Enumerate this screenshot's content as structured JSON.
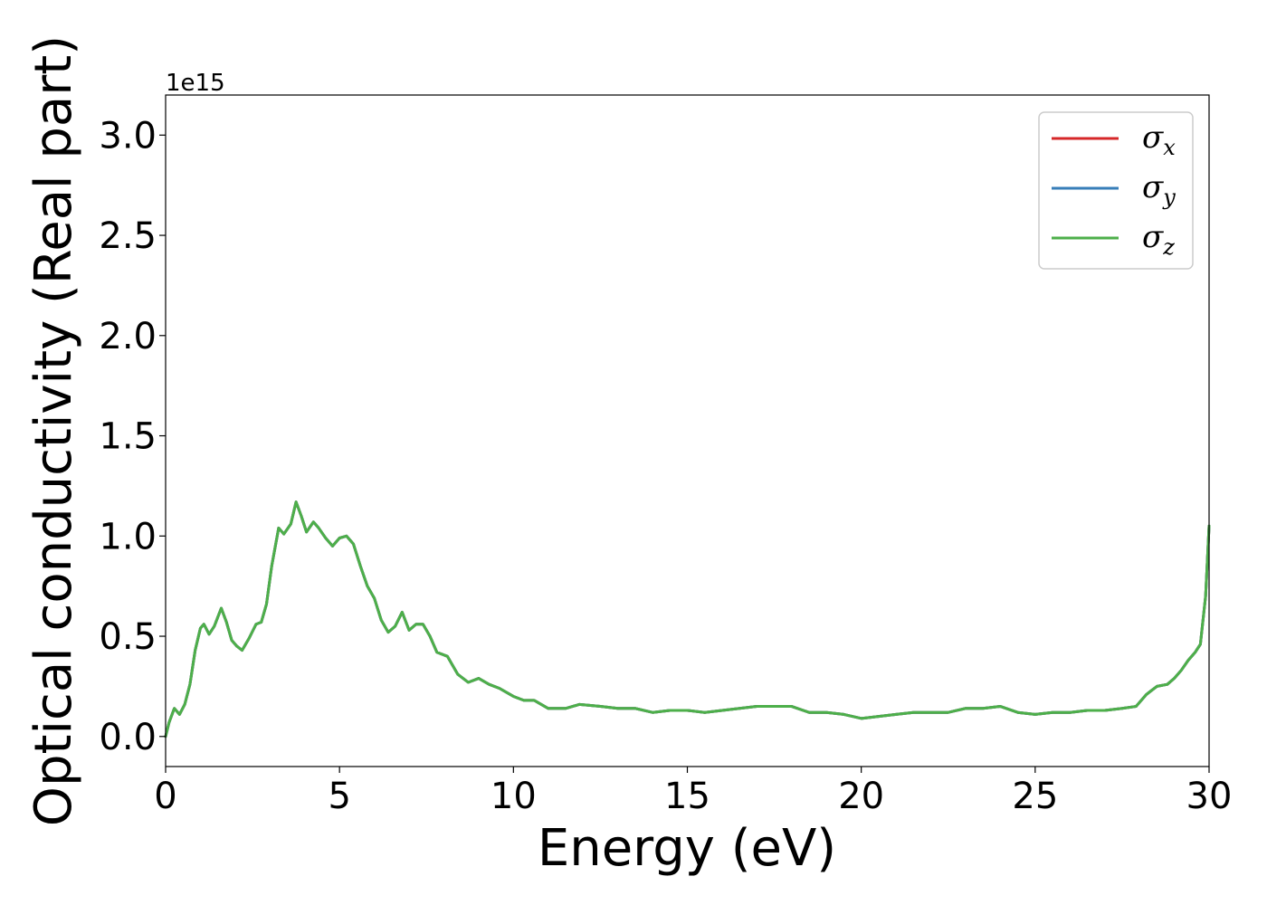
{
  "chart_data": {
    "type": "line",
    "title": "",
    "xlabel": "Energy (eV)",
    "ylabel": "Optical conductivity (Real part)",
    "y_offset_label": "1e15",
    "xlim": [
      0,
      30
    ],
    "ylim": [
      -0.15,
      3.2
    ],
    "x_ticks": [
      0,
      5,
      10,
      15,
      20,
      25,
      30
    ],
    "x_tick_labels": [
      "0",
      "5",
      "10",
      "15",
      "20",
      "25",
      "30"
    ],
    "y_ticks": [
      0.0,
      0.5,
      1.0,
      1.5,
      2.0,
      2.5,
      3.0
    ],
    "y_tick_labels": [
      "0.0",
      "0.5",
      "1.0",
      "1.5",
      "2.0",
      "2.5",
      "3.0"
    ],
    "grid": false,
    "legend_position": "top-right",
    "x": [
      0,
      0.1,
      0.25,
      0.4,
      0.55,
      0.7,
      0.85,
      1.0,
      1.1,
      1.25,
      1.4,
      1.6,
      1.75,
      1.9,
      2.05,
      2.2,
      2.4,
      2.6,
      2.75,
      2.9,
      3.05,
      3.25,
      3.4,
      3.6,
      3.75,
      3.9,
      4.05,
      4.25,
      4.4,
      4.6,
      4.8,
      5.0,
      5.2,
      5.4,
      5.6,
      5.8,
      6.0,
      6.2,
      6.4,
      6.6,
      6.8,
      7.0,
      7.2,
      7.4,
      7.6,
      7.8,
      8.1,
      8.4,
      8.7,
      9.0,
      9.3,
      9.6,
      10.0,
      10.3,
      10.6,
      11.0,
      11.5,
      11.9,
      12.5,
      13.0,
      13.5,
      14.0,
      14.5,
      15.0,
      15.5,
      16.0,
      16.5,
      17.0,
      17.5,
      18.0,
      18.5,
      19.0,
      19.5,
      20.0,
      20.5,
      21.0,
      21.5,
      22.0,
      22.5,
      23.0,
      23.5,
      24.0,
      24.5,
      25.0,
      25.5,
      26.0,
      26.5,
      27.0,
      27.5,
      27.9,
      28.2,
      28.5,
      28.8,
      29.0,
      29.2,
      29.4,
      29.6,
      29.75,
      29.9,
      30.0
    ],
    "series": [
      {
        "name": "σx",
        "color": "#d62728",
        "values": [
          0.0,
          0.07,
          0.14,
          0.11,
          0.16,
          0.26,
          0.43,
          0.54,
          0.56,
          0.51,
          0.55,
          0.64,
          0.57,
          0.48,
          0.45,
          0.43,
          0.49,
          0.56,
          0.57,
          0.66,
          0.85,
          1.04,
          1.01,
          1.06,
          1.17,
          1.1,
          1.02,
          1.07,
          1.04,
          0.99,
          0.95,
          0.99,
          1.0,
          0.96,
          0.85,
          0.75,
          0.69,
          0.58,
          0.52,
          0.55,
          0.62,
          0.53,
          0.56,
          0.56,
          0.5,
          0.42,
          0.4,
          0.31,
          0.27,
          0.29,
          0.26,
          0.24,
          0.2,
          0.18,
          0.18,
          0.14,
          0.14,
          0.16,
          0.15,
          0.14,
          0.14,
          0.12,
          0.13,
          0.13,
          0.12,
          0.13,
          0.14,
          0.15,
          0.15,
          0.15,
          0.12,
          0.12,
          0.11,
          0.09,
          0.1,
          0.11,
          0.12,
          0.12,
          0.12,
          0.14,
          0.14,
          0.15,
          0.12,
          0.11,
          0.12,
          0.12,
          0.13,
          0.13,
          0.14,
          0.15,
          0.21,
          0.25,
          0.26,
          0.29,
          0.33,
          0.38,
          0.42,
          0.46,
          0.7,
          1.05
        ]
      },
      {
        "name": "σy",
        "color": "#377eb8",
        "values": [
          0.0,
          0.07,
          0.14,
          0.11,
          0.16,
          0.26,
          0.43,
          0.54,
          0.56,
          0.51,
          0.55,
          0.64,
          0.57,
          0.48,
          0.45,
          0.43,
          0.49,
          0.56,
          0.57,
          0.66,
          0.85,
          1.04,
          1.01,
          1.06,
          1.17,
          1.1,
          1.02,
          1.07,
          1.04,
          0.99,
          0.95,
          0.99,
          1.0,
          0.96,
          0.85,
          0.75,
          0.69,
          0.58,
          0.52,
          0.55,
          0.62,
          0.53,
          0.56,
          0.56,
          0.5,
          0.42,
          0.4,
          0.31,
          0.27,
          0.29,
          0.26,
          0.24,
          0.2,
          0.18,
          0.18,
          0.14,
          0.14,
          0.16,
          0.15,
          0.14,
          0.14,
          0.12,
          0.13,
          0.13,
          0.12,
          0.13,
          0.14,
          0.15,
          0.15,
          0.15,
          0.12,
          0.12,
          0.11,
          0.09,
          0.1,
          0.11,
          0.12,
          0.12,
          0.12,
          0.14,
          0.14,
          0.15,
          0.12,
          0.11,
          0.12,
          0.12,
          0.13,
          0.13,
          0.14,
          0.15,
          0.21,
          0.25,
          0.26,
          0.29,
          0.33,
          0.38,
          0.42,
          0.46,
          0.7,
          1.05
        ]
      },
      {
        "name": "σz",
        "color": "#4daf4a",
        "values": [
          0.0,
          0.07,
          0.14,
          0.11,
          0.16,
          0.26,
          0.43,
          0.54,
          0.56,
          0.51,
          0.55,
          0.64,
          0.57,
          0.48,
          0.45,
          0.43,
          0.49,
          0.56,
          0.57,
          0.66,
          0.85,
          1.04,
          1.01,
          1.06,
          1.17,
          1.1,
          1.02,
          1.07,
          1.04,
          0.99,
          0.95,
          0.99,
          1.0,
          0.96,
          0.85,
          0.75,
          0.69,
          0.58,
          0.52,
          0.55,
          0.62,
          0.53,
          0.56,
          0.56,
          0.5,
          0.42,
          0.4,
          0.31,
          0.27,
          0.29,
          0.26,
          0.24,
          0.2,
          0.18,
          0.18,
          0.14,
          0.14,
          0.16,
          0.15,
          0.14,
          0.14,
          0.12,
          0.13,
          0.13,
          0.12,
          0.13,
          0.14,
          0.15,
          0.15,
          0.15,
          0.12,
          0.12,
          0.11,
          0.09,
          0.1,
          0.11,
          0.12,
          0.12,
          0.12,
          0.14,
          0.14,
          0.15,
          0.12,
          0.11,
          0.12,
          0.12,
          0.13,
          0.13,
          0.14,
          0.15,
          0.21,
          0.25,
          0.26,
          0.29,
          0.33,
          0.38,
          0.42,
          0.46,
          0.7,
          1.05
        ]
      }
    ]
  },
  "legend": {
    "items": [
      {
        "symbol": "σ",
        "sub": "x",
        "color": "#d62728"
      },
      {
        "symbol": "σ",
        "sub": "y",
        "color": "#377eb8"
      },
      {
        "symbol": "σ",
        "sub": "z",
        "color": "#4daf4a"
      }
    ]
  }
}
